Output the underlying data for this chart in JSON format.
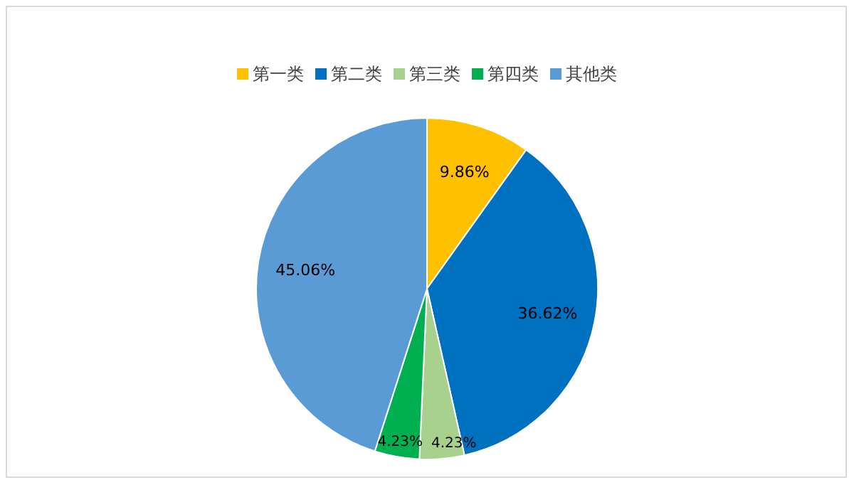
{
  "chart_data": {
    "type": "pie",
    "categories": [
      "第一类",
      "第二类",
      "第三类",
      "第四类",
      "其他类"
    ],
    "values": [
      9.86,
      36.62,
      4.23,
      4.23,
      45.06
    ],
    "colors": [
      "#ffc000",
      "#0070c0",
      "#a9d18e",
      "#00b050",
      "#5b9bd5"
    ],
    "value_labels": [
      "9.86%",
      "36.62%",
      "4.23%",
      "4.23%",
      "45.06%"
    ],
    "legend": "top"
  }
}
